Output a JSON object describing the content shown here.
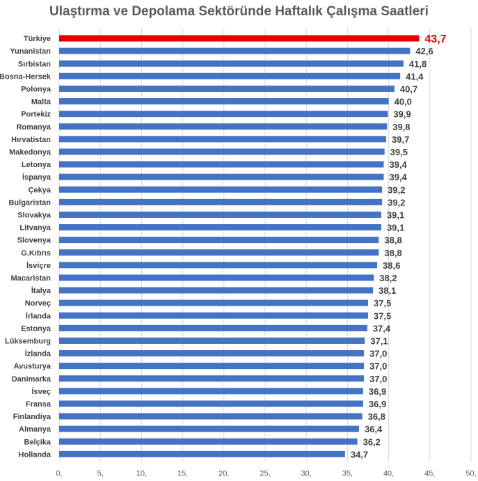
{
  "chart_data": {
    "type": "bar",
    "orientation": "horizontal",
    "title": "Ulaştırma ve Depolama Sektöründe Haftalık Çalışma Saatleri",
    "categories": [
      "Türkiye",
      "Yunanistan",
      "Sırbistan",
      "Bosna-Hersek",
      "Polonya",
      "Malta",
      "Portekiz",
      "Romanya",
      "Hırvatistan",
      "Makedonya",
      "Letonya",
      "İspanya",
      "Çekya",
      "Bulgaristan",
      "Slovakya",
      "Litvanya",
      "Slovenya",
      "G.Kıbrıs",
      "İsviçre",
      "Macaristan",
      "İtalya",
      "Norveç",
      "İrlanda",
      "Estonya",
      "Lüksemburg",
      "İzlanda",
      "Avusturya",
      "Danimarka",
      "İsveç",
      "Fransa",
      "Finlandiya",
      "Almanya",
      "Belçika",
      "Hollanda"
    ],
    "values": [
      43.7,
      42.6,
      41.8,
      41.4,
      40.7,
      40.0,
      39.9,
      39.8,
      39.7,
      39.5,
      39.4,
      39.4,
      39.2,
      39.2,
      39.1,
      39.1,
      38.8,
      38.8,
      38.6,
      38.2,
      38.1,
      37.5,
      37.5,
      37.4,
      37.1,
      37.0,
      37.0,
      37.0,
      36.9,
      36.9,
      36.8,
      36.4,
      36.2,
      34.7
    ],
    "value_labels": [
      "43,7",
      "42,6",
      "41,8",
      "41,4",
      "40,7",
      "40,0",
      "39,9",
      "39,8",
      "39,7",
      "39,5",
      "39,4",
      "39,4",
      "39,2",
      "39,2",
      "39,1",
      "39,1",
      "38,8",
      "38,8",
      "38,6",
      "38,2",
      "38,1",
      "37,5",
      "37,5",
      "37,4",
      "37,1",
      "37,0",
      "37,0",
      "37,0",
      "36,9",
      "36,9",
      "36,8",
      "36,4",
      "36,2",
      "34,7"
    ],
    "x_ticks": [
      "0,",
      "5,",
      "10,",
      "15,",
      "20,",
      "25,",
      "30,",
      "35,",
      "40,",
      "45,",
      "50,"
    ],
    "xlim": [
      0,
      50
    ],
    "grid": "vertical",
    "highlight_index": 0,
    "colors": {
      "bar": "#4472c4",
      "highlight": "#e00000",
      "grid": "#d9d9d9"
    }
  }
}
